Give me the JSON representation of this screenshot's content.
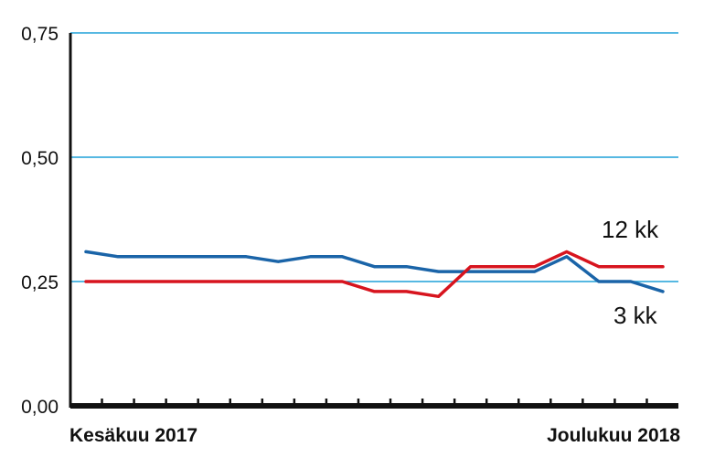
{
  "chart_data": {
    "type": "line",
    "y_ticks": [
      "0,75",
      "0,50",
      "0,25",
      "0,00"
    ],
    "y_tick_values": [
      0.75,
      0.5,
      0.25,
      0.0
    ],
    "ylim": [
      0,
      0.75
    ],
    "grid": true,
    "x_start_label": "Kesäkuu 2017",
    "x_end_label": "Joulukuu 2018",
    "x_points": 19,
    "series": [
      {
        "name": "3 kk",
        "color": "#1a64a8",
        "values": [
          0.31,
          0.3,
          0.3,
          0.3,
          0.3,
          0.3,
          0.29,
          0.3,
          0.3,
          0.28,
          0.28,
          0.27,
          0.27,
          0.27,
          0.27,
          0.3,
          0.25,
          0.25,
          0.23
        ]
      },
      {
        "name": "12 kk",
        "color": "#d7141e",
        "values": [
          0.25,
          0.25,
          0.25,
          0.25,
          0.25,
          0.25,
          0.25,
          0.25,
          0.25,
          0.23,
          0.23,
          0.22,
          0.28,
          0.28,
          0.28,
          0.31,
          0.28,
          0.28,
          0.28
        ]
      }
    ],
    "labels": {
      "series_12kk": "12  kk",
      "series_3kk": "3  kk"
    }
  }
}
